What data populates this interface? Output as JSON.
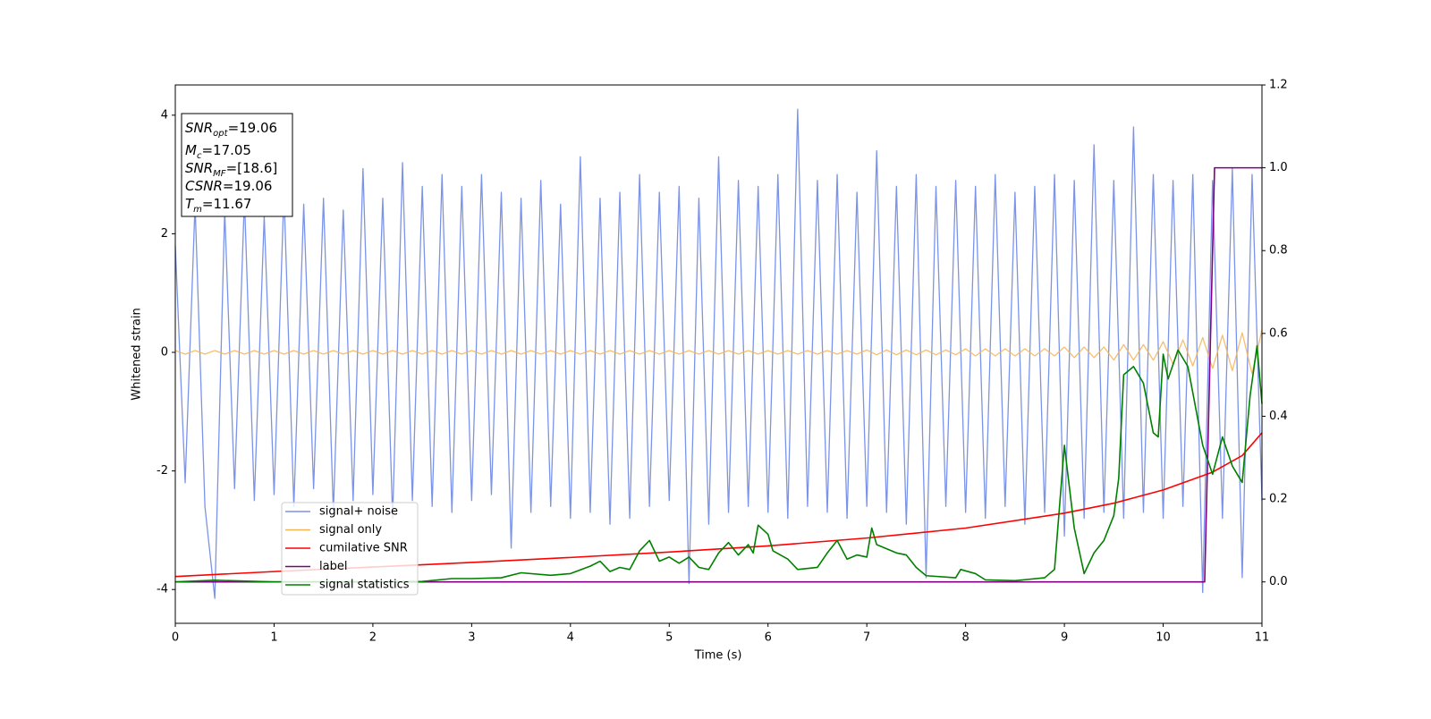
{
  "chart_data": {
    "type": "line",
    "xlabel": "Time (s)",
    "ylabel": "Whitened strain",
    "xlim": [
      0,
      11
    ],
    "ylim": [
      -4.57,
      4.51
    ],
    "y2lim": [
      -0.1,
      1.2
    ],
    "xticks": [
      0,
      1,
      2,
      3,
      4,
      5,
      6,
      7,
      8,
      9,
      10,
      11
    ],
    "yticks": [
      -4,
      -2,
      0,
      2,
      4
    ],
    "y2ticks": [
      {
        "value": 0,
        "label": "0.0"
      },
      0.2,
      0.4,
      0.6,
      0.8,
      {
        "value": 1,
        "label": "1.0"
      },
      1.2
    ],
    "legend": "lower left",
    "x": [
      0,
      0.1,
      0.2,
      0.3,
      0.4,
      0.5,
      0.6,
      0.7,
      0.8,
      0.9,
      1,
      1.1,
      1.2,
      1.3,
      1.4,
      1.5,
      1.6,
      1.7,
      1.8,
      1.9,
      2,
      2.1,
      2.2,
      2.3,
      2.4,
      2.5,
      2.6,
      2.7,
      2.8,
      2.9,
      3,
      3.1,
      3.2,
      3.3,
      3.4,
      3.5,
      3.6,
      3.7,
      3.8,
      3.9,
      4,
      4.1,
      4.2,
      4.3,
      4.4,
      4.5,
      4.6,
      4.7,
      4.8,
      4.9,
      5,
      5.1,
      5.2,
      5.3,
      5.4,
      5.5,
      5.6,
      5.7,
      5.8,
      5.9,
      6,
      6.1,
      6.2,
      6.3,
      6.4,
      6.5,
      6.6,
      6.7,
      6.8,
      6.9,
      7,
      7.1,
      7.2,
      7.3,
      7.4,
      7.5,
      7.6,
      7.7,
      7.8,
      7.9,
      8,
      8.1,
      8.2,
      8.3,
      8.4,
      8.5,
      8.6,
      8.7,
      8.8,
      8.9,
      9,
      9.1,
      9.2,
      9.3,
      9.4,
      9.5,
      9.6,
      9.7,
      9.8,
      9.9,
      10,
      10.1,
      10.2,
      10.3,
      10.4,
      10.5,
      10.6,
      10.7,
      10.8,
      10.9,
      11
    ],
    "series": [
      {
        "name": "signal+ noise",
        "color": "#7b93e8",
        "values": [
          1.8,
          -2.2,
          2.5,
          -2.6,
          -4.15,
          2.4,
          -2.3,
          2.6,
          -2.5,
          2.3,
          -2.4,
          2.7,
          -2.6,
          2.5,
          -2.3,
          2.6,
          -2.7,
          2.4,
          -2.5,
          3.1,
          -2.4,
          2.6,
          -2.8,
          3.2,
          -2.5,
          2.8,
          -2.6,
          3.0,
          -2.7,
          2.8,
          -2.5,
          3.0,
          -2.4,
          2.7,
          -3.3,
          2.6,
          -2.7,
          2.9,
          -2.6,
          2.5,
          -2.8,
          3.3,
          -2.7,
          2.6,
          -2.9,
          2.7,
          -2.8,
          3.0,
          -2.6,
          2.7,
          -2.5,
          2.8,
          -3.9,
          2.6,
          -2.9,
          3.3,
          -2.7,
          2.9,
          -2.6,
          2.8,
          -2.7,
          3.0,
          -2.8,
          4.1,
          -2.6,
          2.9,
          -2.7,
          3.0,
          -2.8,
          2.7,
          -2.6,
          3.4,
          -2.7,
          2.8,
          -2.9,
          3.0,
          -3.8,
          2.8,
          -2.6,
          2.9,
          -2.7,
          2.8,
          -2.8,
          3.0,
          -2.6,
          2.7,
          -2.9,
          2.8,
          -2.7,
          3.0,
          -3.1,
          2.9,
          -2.8,
          3.5,
          -2.7,
          2.9,
          -2.8,
          3.8,
          -2.7,
          3.0,
          -2.8,
          2.9,
          -2.6,
          3.0,
          -4.05,
          2.9,
          -2.8,
          3.1,
          -3.8,
          3.0,
          -2.5
        ]
      },
      {
        "name": "signal only",
        "color": "#f5b456",
        "values": [
          0.03,
          -0.03,
          0.03,
          -0.03,
          0.03,
          -0.03,
          0.03,
          -0.03,
          0.03,
          -0.03,
          0.03,
          -0.03,
          0.03,
          -0.03,
          0.03,
          -0.03,
          0.03,
          -0.03,
          0.03,
          -0.03,
          0.03,
          -0.03,
          0.03,
          -0.03,
          0.03,
          -0.03,
          0.03,
          -0.03,
          0.03,
          -0.03,
          0.03,
          -0.03,
          0.03,
          -0.03,
          0.03,
          -0.03,
          0.03,
          -0.03,
          0.03,
          -0.03,
          0.03,
          -0.03,
          0.03,
          -0.03,
          0.03,
          -0.03,
          0.03,
          -0.03,
          0.03,
          -0.03,
          0.03,
          -0.03,
          0.03,
          -0.03,
          0.03,
          -0.03,
          0.03,
          -0.03,
          0.03,
          -0.03,
          0.03,
          -0.03,
          0.03,
          -0.03,
          0.03,
          -0.03,
          0.03,
          -0.03,
          0.03,
          -0.03,
          0.04,
          -0.04,
          0.04,
          -0.04,
          0.04,
          -0.04,
          0.04,
          -0.04,
          0.04,
          -0.04,
          0.06,
          -0.06,
          0.06,
          -0.06,
          0.06,
          -0.06,
          0.06,
          -0.06,
          0.06,
          -0.06,
          0.09,
          -0.09,
          0.09,
          -0.09,
          0.09,
          -0.13,
          0.13,
          -0.13,
          0.13,
          -0.13,
          0.18,
          -0.2,
          0.21,
          -0.23,
          0.25,
          -0.27,
          0.29,
          -0.31,
          0.33,
          -0.36,
          0.38
        ]
      },
      {
        "name": "cumilative SNR",
        "color": "#ff0000",
        "axis": "y2",
        "x": [
          0,
          1,
          2,
          3,
          4,
          5,
          6,
          7,
          8,
          9,
          9.5,
          10,
          10.5,
          10.8,
          11
        ],
        "values": [
          0.013,
          0.025,
          0.036,
          0.047,
          0.059,
          0.072,
          0.087,
          0.106,
          0.13,
          0.166,
          0.19,
          0.222,
          0.265,
          0.305,
          0.36
        ]
      },
      {
        "name": "label",
        "color": "#800080",
        "axis": "y2",
        "x": [
          0,
          10.42,
          10.52,
          11
        ],
        "values": [
          0,
          0,
          1,
          1
        ]
      },
      {
        "name": "signal statistics",
        "color": "#008000",
        "axis": "y2",
        "x": [
          0,
          0.4,
          1,
          2,
          2.5,
          2.8,
          3,
          3.3,
          3.5,
          3.8,
          4,
          4.2,
          4.3,
          4.4,
          4.5,
          4.6,
          4.7,
          4.8,
          4.9,
          5,
          5.1,
          5.2,
          5.3,
          5.4,
          5.5,
          5.6,
          5.7,
          5.8,
          5.85,
          5.9,
          6,
          6.05,
          6.2,
          6.3,
          6.5,
          6.6,
          6.7,
          6.8,
          6.9,
          7,
          7.05,
          7.1,
          7.3,
          7.4,
          7.5,
          7.6,
          7.9,
          7.95,
          8.1,
          8.2,
          8.5,
          8.8,
          8.9,
          9,
          9.1,
          9.2,
          9.3,
          9.4,
          9.5,
          9.55,
          9.6,
          9.7,
          9.8,
          9.9,
          9.95,
          10,
          10.05,
          10.15,
          10.25,
          10.4,
          10.5,
          10.6,
          10.7,
          10.8,
          10.88,
          10.95,
          11
        ],
        "values": [
          0,
          0.004,
          0,
          0,
          0.001,
          0.008,
          0.008,
          0.01,
          0.022,
          0.016,
          0.02,
          0.038,
          0.05,
          0.025,
          0.035,
          0.03,
          0.075,
          0.1,
          0.05,
          0.06,
          0.045,
          0.06,
          0.035,
          0.03,
          0.07,
          0.095,
          0.065,
          0.09,
          0.07,
          0.137,
          0.115,
          0.075,
          0.055,
          0.03,
          0.035,
          0.07,
          0.1,
          0.055,
          0.065,
          0.06,
          0.13,
          0.09,
          0.07,
          0.065,
          0.035,
          0.015,
          0.01,
          0.03,
          0.02,
          0.005,
          0.003,
          0.01,
          0.03,
          0.33,
          0.13,
          0.02,
          0.07,
          0.1,
          0.16,
          0.25,
          0.5,
          0.52,
          0.48,
          0.36,
          0.35,
          0.55,
          0.49,
          0.56,
          0.52,
          0.33,
          0.26,
          0.35,
          0.28,
          0.24,
          0.45,
          0.57,
          0.43
        ]
      }
    ],
    "annotations": [
      {
        "name": "SNR",
        "sub": "opt",
        "text": "=19.06"
      },
      {
        "name": "M",
        "sub": "c",
        "text": "=17.05"
      },
      {
        "name": "SNR",
        "sub": "MF",
        "text": "=[18.6]"
      },
      {
        "name": "CSNR",
        "text": "=19.06"
      },
      {
        "name": "T",
        "sub": "m",
        "text": "=11.67"
      }
    ]
  }
}
